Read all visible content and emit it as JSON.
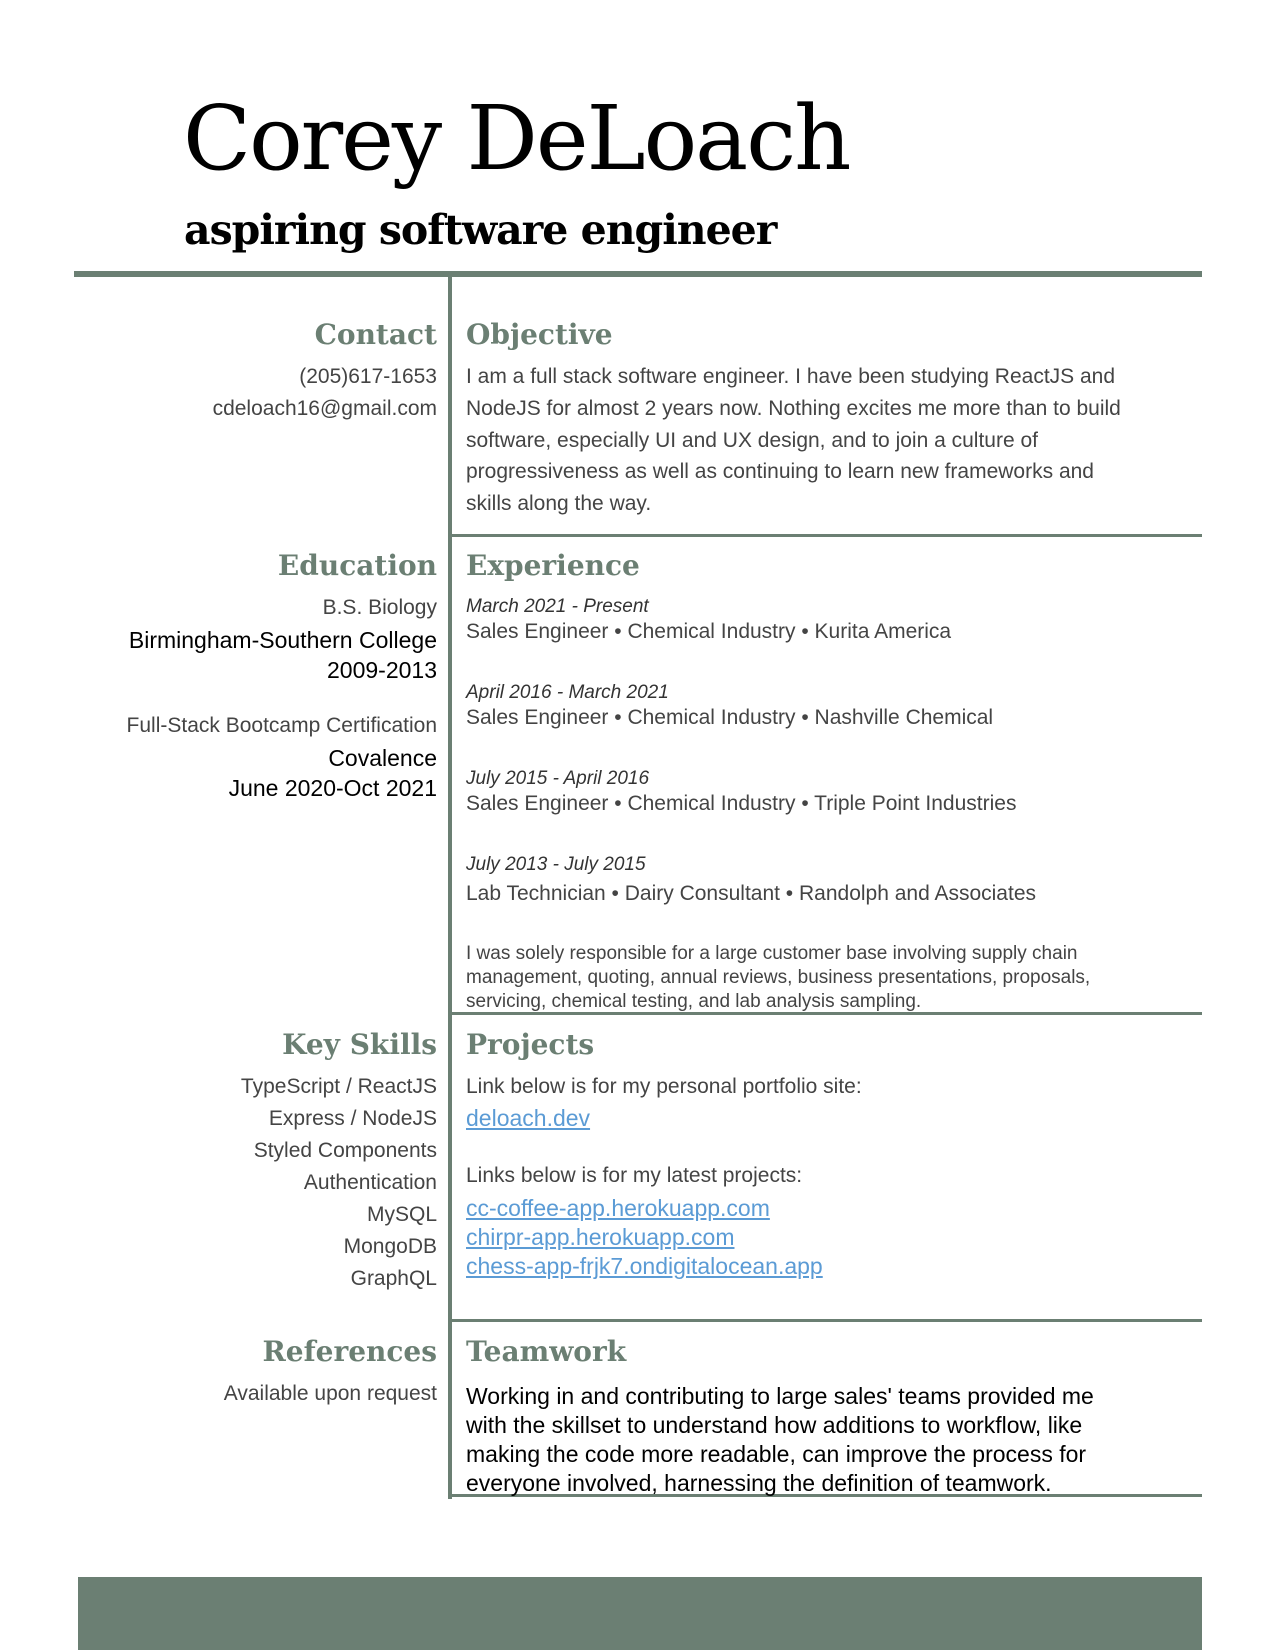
{
  "header": {
    "name": "Corey DeLoach",
    "subtitle": "aspiring software engineer"
  },
  "contact": {
    "heading": "Contact",
    "phone": "(205)617-1653",
    "email": "cdeloach16@gmail.com"
  },
  "objective": {
    "heading": "Objective",
    "lines": [
      "I am a full stack software engineer. I have been studying ReactJS and",
      "NodeJS for almost 2 years now. Nothing excites me more than to build",
      "software, especially UI and UX design, and to join a culture of",
      "progressiveness as well as continuing to learn new frameworks and",
      "skills along the way."
    ]
  },
  "education": {
    "heading": "Education",
    "entries": [
      {
        "degree": "B.S. Biology",
        "school": "Birmingham-Southern College",
        "dates": "2009-2013"
      },
      {
        "degree": "Full-Stack Bootcamp Certification",
        "school": "Covalence",
        "dates": "June 2020-Oct 2021"
      }
    ]
  },
  "experience": {
    "heading": "Experience",
    "jobs": [
      {
        "dates": "March 2021 - Present",
        "title": "Sales Engineer • Chemical Industry • Kurita America"
      },
      {
        "dates": "April 2016 - March 2021",
        "title": "Sales Engineer • Chemical Industry • Nashville Chemical"
      },
      {
        "dates": "July 2015 - April 2016",
        "title": "Sales Engineer • Chemical Industry • Triple Point Industries"
      },
      {
        "dates": "July 2013 - July 2015",
        "title": "Lab Technician • Dairy Consultant • Randolph and Associates"
      }
    ],
    "summary_lines": [
      "I was solely responsible for a large customer base involving supply chain",
      "management, quoting, annual reviews, business presentations, proposals,",
      "servicing, chemical testing, and lab analysis sampling."
    ]
  },
  "skills": {
    "heading": "Key Skills",
    "items": [
      "TypeScript / ReactJS",
      "Express / NodeJS",
      "Styled Components",
      "Authentication",
      "MySQL",
      "MongoDB",
      "GraphQL"
    ]
  },
  "projects": {
    "heading": "Projects",
    "portfolio_intro": "Link below is for my personal portfolio site:",
    "portfolio_link": "deloach.dev",
    "latest_intro": "Links below is for my latest projects:",
    "links": [
      "cc-coffee-app.herokuapp.com",
      "chirpr-app.herokuapp.com",
      "chess-app-frjk7.ondigitalocean.app"
    ]
  },
  "references": {
    "heading": "References",
    "text": "Available upon request"
  },
  "teamwork": {
    "heading": "Teamwork",
    "lines": [
      "Working in and contributing to large sales' teams provided me",
      "with the skillset to understand how additions to workflow, like",
      "making the code more readable, can improve the process for",
      "everyone involved, harnessing the definition of teamwork."
    ]
  },
  "colors": {
    "accent": "#6b7f73",
    "link": "#5b9bd5",
    "body_text": "#444444"
  }
}
